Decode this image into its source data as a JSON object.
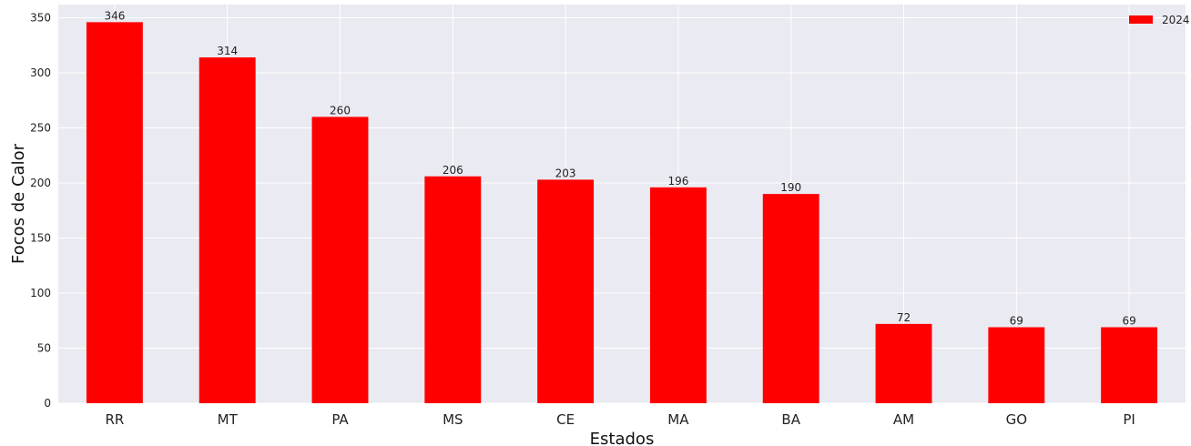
{
  "colors": {
    "background": "#EAEAF2",
    "grid": "#FFFFFF",
    "bar": "#FF0000"
  },
  "chart_data": {
    "type": "bar",
    "categories": [
      "RR",
      "MT",
      "PA",
      "MS",
      "CE",
      "MA",
      "BA",
      "AM",
      "GO",
      "PI"
    ],
    "series": [
      {
        "name": "2024",
        "values": [
          346,
          314,
          260,
          206,
          203,
          196,
          190,
          72,
          69,
          69
        ]
      }
    ],
    "xlabel": "Estados",
    "ylabel": "Focos de Calor",
    "ylim": [
      0,
      362
    ],
    "yticks": [
      0,
      50,
      100,
      150,
      200,
      250,
      300,
      350
    ],
    "grid": true,
    "legend_position": "top-right",
    "data_labels": true
  }
}
